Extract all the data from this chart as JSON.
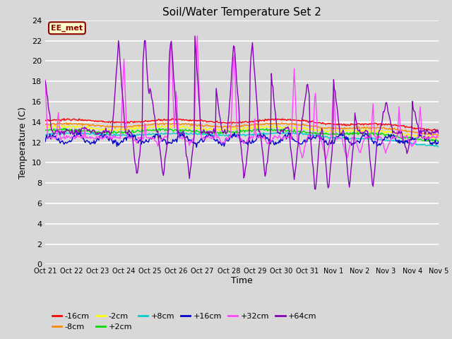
{
  "title": "Soil/Water Temperature Set 2",
  "xlabel": "Time",
  "ylabel": "Temperature (C)",
  "ylim": [
    0,
    24
  ],
  "yticks": [
    0,
    2,
    4,
    6,
    8,
    10,
    12,
    14,
    16,
    18,
    20,
    22,
    24
  ],
  "plot_bg_color": "#d8d8d8",
  "fig_bg_color": "#d8d8d8",
  "grid_color": "#ffffff",
  "annotation_text": "EE_met",
  "annotation_bg": "#ffffcc",
  "annotation_border": "#8b0000",
  "series": [
    {
      "label": "-16cm",
      "color": "#ff0000"
    },
    {
      "label": "-8cm",
      "color": "#ff8800"
    },
    {
      "label": "-2cm",
      "color": "#ffff00"
    },
    {
      "label": "+2cm",
      "color": "#00dd00"
    },
    {
      "label": "+8cm",
      "color": "#00cccc"
    },
    {
      "label": "+16cm",
      "color": "#0000cc"
    },
    {
      "label": "+32cm",
      "color": "#ff44ff"
    },
    {
      "label": "+64cm",
      "color": "#8800bb"
    }
  ],
  "x_labels": [
    "Oct 21",
    "Oct 22",
    "Oct 23",
    "Oct 24",
    "Oct 25",
    "Oct 26",
    "Oct 27",
    "Oct 28",
    "Oct 29",
    "Oct 30",
    "Oct 31",
    "Nov 1",
    "Nov 2",
    "Nov 3",
    "Nov 4",
    "Nov 5"
  ],
  "figsize": [
    6.4,
    4.8
  ],
  "dpi": 100
}
